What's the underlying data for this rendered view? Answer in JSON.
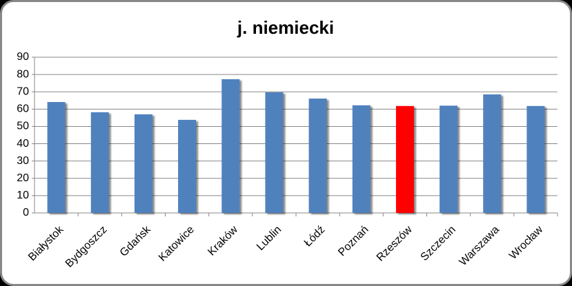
{
  "chart_data": {
    "type": "bar",
    "title": "j. niemiecki",
    "categories": [
      "Białystok",
      "Bydgoszcz",
      "Gdańsk",
      "Katowice",
      "Kraków",
      "Lublin",
      "Łódź",
      "Poznań",
      "Rzeszów",
      "Szczecin",
      "Warszawa",
      "Wrocław"
    ],
    "values": [
      64.1,
      58.2,
      57,
      53.8,
      77.3,
      69.7,
      66.1,
      62.2,
      61.8,
      62,
      68.5,
      61.8
    ],
    "colors": [
      "#4f81bd",
      "#4f81bd",
      "#4f81bd",
      "#4f81bd",
      "#4f81bd",
      "#4f81bd",
      "#4f81bd",
      "#4f81bd",
      "#ff0000",
      "#4f81bd",
      "#4f81bd",
      "#4f81bd"
    ],
    "ylim": [
      0,
      90
    ],
    "yticks": [
      0,
      10,
      20,
      30,
      40,
      50,
      60,
      70,
      80,
      90
    ],
    "grid": true
  }
}
